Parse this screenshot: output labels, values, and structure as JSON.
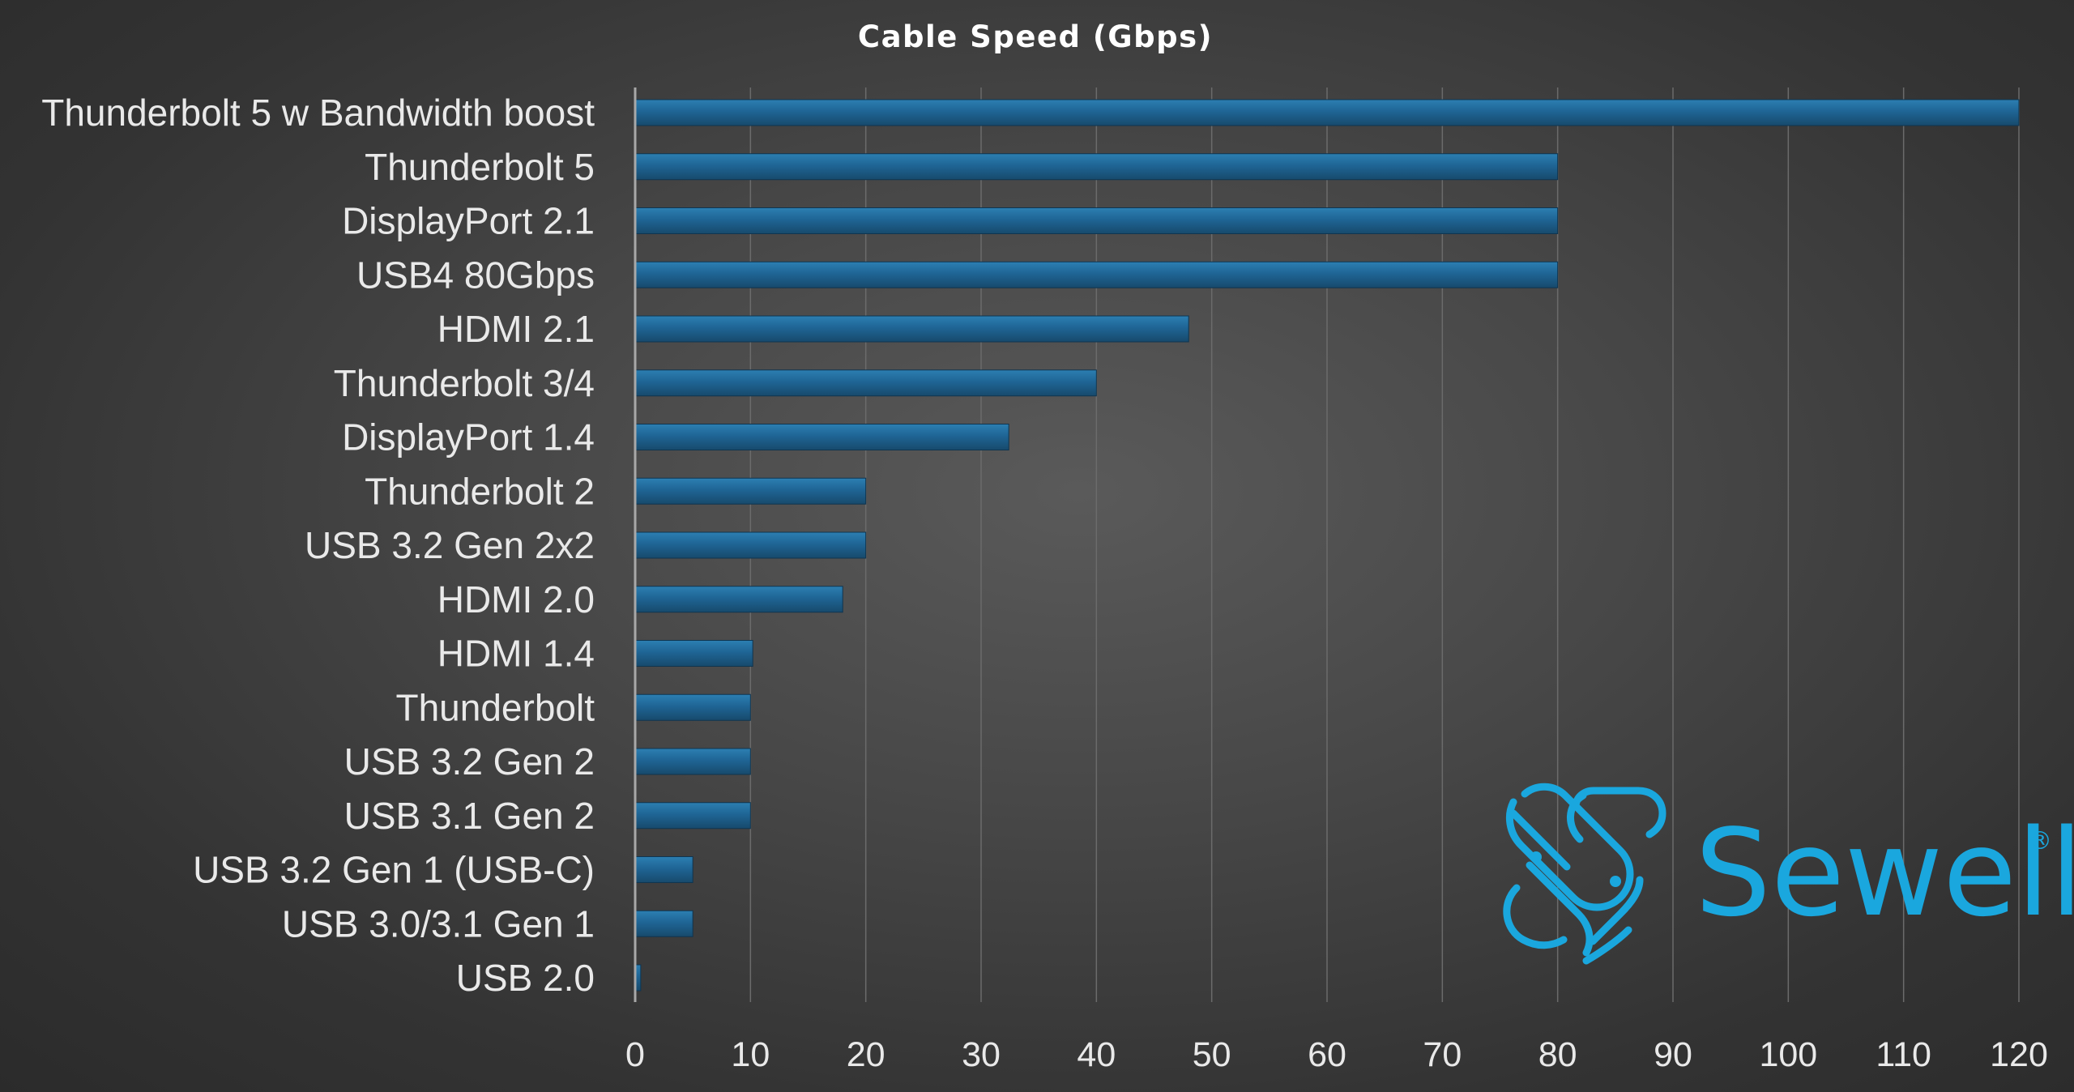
{
  "chart_data": {
    "type": "bar",
    "orientation": "horizontal",
    "title": "Cable Speed (Gbps)",
    "xlabel": "",
    "ylabel": "",
    "xlim": [
      0,
      120
    ],
    "x_ticks": [
      0,
      10,
      20,
      30,
      40,
      50,
      60,
      70,
      80,
      90,
      100,
      110,
      120
    ],
    "grid": "vertical",
    "legend": "none",
    "bar_color": "#1f5f8b",
    "bar_color_light": "#2c7fb2",
    "categories": [
      "Thunderbolt 5 w Bandwidth boost",
      "Thunderbolt 5",
      "DisplayPort 2.1",
      "USB4 80Gbps",
      "HDMI 2.1",
      "Thunderbolt 3/4",
      "DisplayPort 1.4",
      "Thunderbolt 2",
      "USB 3.2 Gen 2x2",
      "HDMI 2.0",
      "HDMI 1.4",
      "Thunderbolt",
      "USB 3.2 Gen 2",
      "USB 3.1 Gen 2",
      "USB 3.2 Gen 1 (USB-C)",
      "USB 3.0/3.1 Gen 1",
      "USB 2.0"
    ],
    "values": [
      120,
      80,
      80,
      80,
      48,
      40,
      32.4,
      20,
      20,
      18,
      10.2,
      10,
      10,
      10,
      5,
      5,
      0.48
    ]
  },
  "logo": {
    "text": "Sewell",
    "registered": "®",
    "color": "#1aa7de",
    "icon": "sewell-links-icon"
  }
}
